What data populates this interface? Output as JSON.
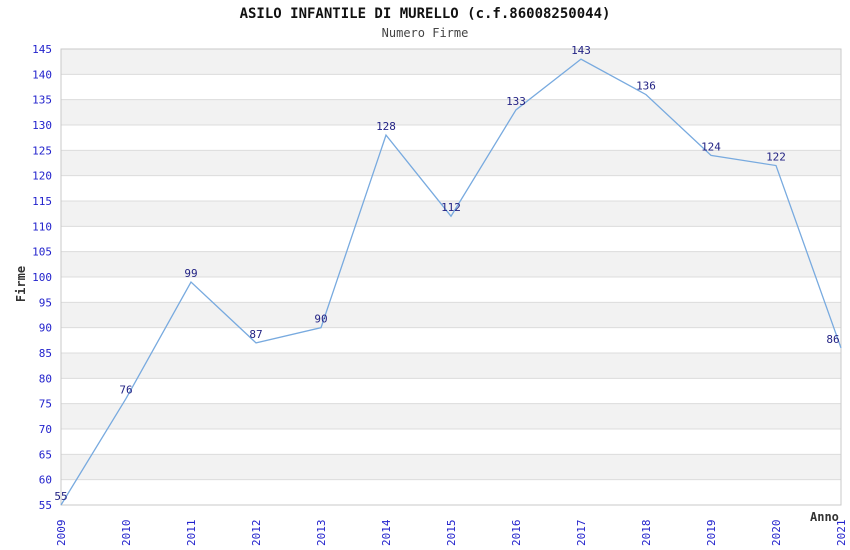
{
  "header": {
    "title": "ASILO INFANTILE DI MURELLO (c.f.86008250044)",
    "subtitle": "Numero Firme"
  },
  "chart_data": {
    "type": "line",
    "title": "ASILO INFANTILE DI MURELLO (c.f.86008250044)",
    "subtitle": "Numero Firme",
    "categories": [
      "2009",
      "2010",
      "2011",
      "2012",
      "2013",
      "2014",
      "2015",
      "2016",
      "2017",
      "2018",
      "2019",
      "2020",
      "2021"
    ],
    "values": [
      55,
      76,
      99,
      87,
      90,
      128,
      112,
      133,
      143,
      136,
      124,
      122,
      86
    ],
    "xlabel": "Anno",
    "ylabel": "Firme",
    "ylim": [
      55,
      145
    ],
    "ytick_step": 5,
    "grid": "horizontal-bands",
    "legend": "none",
    "colors": {
      "line": "#78AADF",
      "tick_label": "#2222CC",
      "data_label": "#232384",
      "band": "#F2F2F2",
      "gridline": "#DCDCDC",
      "border": "#C9C9C9",
      "title": "#111111",
      "subtitle": "#444444",
      "axis_label": "#333333"
    }
  }
}
